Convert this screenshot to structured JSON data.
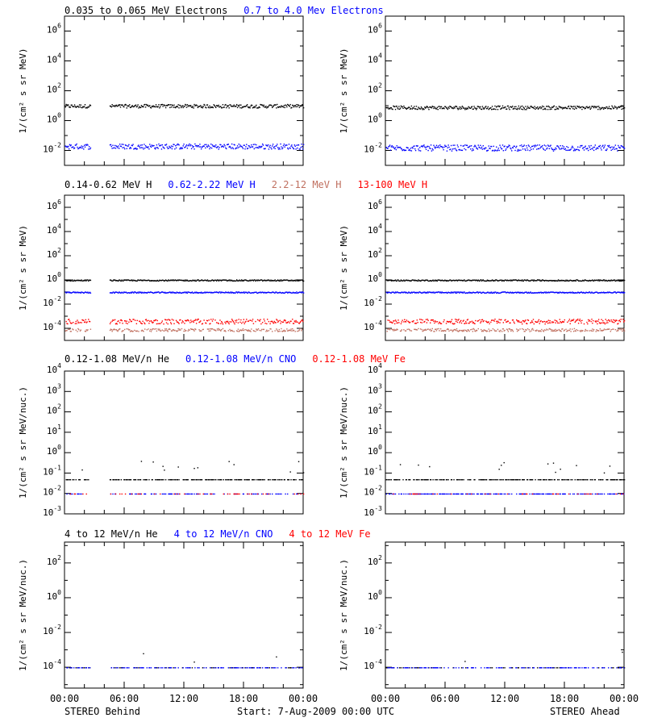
{
  "colors": {
    "black": "#000000",
    "blue": "#0000ff",
    "salmon": "#c07060",
    "red": "#ff0000"
  },
  "footer": {
    "left": "STEREO Behind",
    "center": "Start:  7-Aug-2009 00:00 UTC",
    "right": "STEREO Ahead"
  },
  "x_ticks": [
    "00:00",
    "06:00",
    "12:00",
    "18:00",
    "00:00"
  ],
  "chart_data": [
    {
      "type": "scatter",
      "panel": "behind-electrons",
      "legend": [
        {
          "text": "0.035 to 0.065 MeV Electrons",
          "color": "#000000"
        },
        {
          "text": "0.7 to 4.0 Mev Electrons",
          "color": "#0000ff"
        }
      ],
      "ylabel": "1/(cm² s sr MeV)",
      "yscale": "log",
      "ylim_exp": [
        -3,
        7
      ],
      "ytick_exps": [
        -2,
        0,
        2,
        4,
        6
      ],
      "xlim_hours": [
        0,
        24
      ],
      "series": [
        {
          "color": "#000000",
          "level_exp": 1.0,
          "jitter": 0.12,
          "gaps": [
            [
              2.6,
              4.5
            ]
          ],
          "density": 1
        },
        {
          "color": "#0000ff",
          "level_exp": -1.7,
          "jitter": 0.18,
          "gaps": [
            [
              2.6,
              4.5
            ]
          ],
          "density": 1
        }
      ]
    },
    {
      "type": "scatter",
      "panel": "ahead-electrons",
      "legend": [],
      "ylabel": "1/(cm² s sr MeV)",
      "yscale": "log",
      "ylim_exp": [
        -3,
        7
      ],
      "ytick_exps": [
        -2,
        0,
        2,
        4,
        6
      ],
      "xlim_hours": [
        0,
        24
      ],
      "series": [
        {
          "color": "#000000",
          "level_exp": 0.9,
          "jitter": 0.12,
          "gaps": [],
          "density": 1
        },
        {
          "color": "#0000ff",
          "level_exp": -1.8,
          "jitter": 0.2,
          "gaps": [],
          "density": 1
        }
      ]
    },
    {
      "type": "scatter",
      "panel": "behind-protons",
      "legend": [
        {
          "text": "0.14-0.62 MeV H",
          "color": "#000000"
        },
        {
          "text": "0.62-2.22 MeV H",
          "color": "#0000ff"
        },
        {
          "text": "2.2-12 MeV H",
          "color": "#c07060"
        },
        {
          "text": "13-100 MeV H",
          "color": "#ff0000"
        }
      ],
      "ylabel": "1/(cm² s sr MeV)",
      "yscale": "log",
      "ylim_exp": [
        -5,
        7
      ],
      "ytick_exps": [
        -4,
        -2,
        0,
        2,
        4,
        6
      ],
      "xlim_hours": [
        0,
        24
      ],
      "series": [
        {
          "color": "#000000",
          "level_exp": 0.0,
          "jitter": 0.05,
          "gaps": [
            [
              2.6,
              4.5
            ]
          ],
          "density": 1
        },
        {
          "color": "#0000ff",
          "level_exp": -1.0,
          "jitter": 0.05,
          "gaps": [
            [
              2.6,
              4.5
            ]
          ],
          "density": 1
        },
        {
          "color": "#c07060",
          "level_exp": -4.1,
          "jitter": 0.12,
          "gaps": [
            [
              2.6,
              4.5
            ]
          ],
          "density": 0.7
        },
        {
          "color": "#ff0000",
          "level_exp": -3.4,
          "jitter": 0.2,
          "gaps": [
            [
              2.6,
              4.5
            ]
          ],
          "density": 0.8
        }
      ]
    },
    {
      "type": "scatter",
      "panel": "ahead-protons",
      "legend": [],
      "ylabel": "1/(cm² s sr MeV)",
      "yscale": "log",
      "ylim_exp": [
        -5,
        7
      ],
      "ytick_exps": [
        -4,
        -2,
        0,
        2,
        4,
        6
      ],
      "xlim_hours": [
        0,
        24
      ],
      "series": [
        {
          "color": "#000000",
          "level_exp": 0.0,
          "jitter": 0.05,
          "gaps": [],
          "density": 1
        },
        {
          "color": "#0000ff",
          "level_exp": -1.0,
          "jitter": 0.05,
          "gaps": [],
          "density": 1
        },
        {
          "color": "#c07060",
          "level_exp": -4.1,
          "jitter": 0.12,
          "gaps": [],
          "density": 0.7
        },
        {
          "color": "#ff0000",
          "level_exp": -3.4,
          "jitter": 0.2,
          "gaps": [],
          "density": 0.8
        }
      ]
    },
    {
      "type": "scatter",
      "panel": "behind-heavy-low",
      "legend": [
        {
          "text": "0.12-1.08 MeV/n He",
          "color": "#000000"
        },
        {
          "text": "0.12-1.08 MeV/n CNO",
          "color": "#0000ff"
        },
        {
          "text": "0.12-1.08 MeV Fe",
          "color": "#ff0000"
        }
      ],
      "ylabel": "1/(cm² s sr MeV/nuc.)",
      "yscale": "log",
      "ylim_exp": [
        -3,
        4
      ],
      "ytick_exps": [
        -3,
        -2,
        -1,
        0,
        1,
        2,
        3,
        4
      ],
      "xlim_hours": [
        0,
        24
      ],
      "series": [
        {
          "color": "#000000",
          "level_exp": -1.3,
          "jitter": 0.0,
          "gaps": [
            [
              2.6,
              4.5
            ]
          ],
          "density": 0.6,
          "sparks": true
        },
        {
          "color": "#0000ff",
          "level_exp": -2.0,
          "jitter": 0.0,
          "gaps": [
            [
              2.6,
              4.5
            ]
          ],
          "density": 0.3
        },
        {
          "color": "#ff0000",
          "level_exp": -2.0,
          "jitter": 0.0,
          "gaps": [
            [
              2.6,
              4.5
            ]
          ],
          "density": 0.12
        }
      ]
    },
    {
      "type": "scatter",
      "panel": "ahead-heavy-low",
      "legend": [],
      "ylabel": "1/(cm² s sr MeV/nuc.)",
      "yscale": "log",
      "ylim_exp": [
        -3,
        4
      ],
      "ytick_exps": [
        -3,
        -2,
        -1,
        0,
        1,
        2,
        3,
        4
      ],
      "xlim_hours": [
        0,
        24
      ],
      "series": [
        {
          "color": "#000000",
          "level_exp": -1.3,
          "jitter": 0.0,
          "gaps": [],
          "density": 0.6,
          "sparks": true
        },
        {
          "color": "#0000ff",
          "level_exp": -2.0,
          "jitter": 0.0,
          "gaps": [],
          "density": 0.5
        },
        {
          "color": "#ff0000",
          "level_exp": -2.0,
          "jitter": 0.0,
          "gaps": [],
          "density": 0.12
        }
      ]
    },
    {
      "type": "scatter",
      "panel": "behind-heavy-high",
      "legend": [
        {
          "text": "4 to 12 MeV/n He",
          "color": "#000000"
        },
        {
          "text": "4 to 12 MeV/n CNO",
          "color": "#0000ff"
        },
        {
          "text": "4 to 12 MeV Fe",
          "color": "#ff0000"
        }
      ],
      "ylabel": "1/(cm² s sr MeV/nuc.)",
      "yscale": "log",
      "ylim_exp": [
        -5.2,
        3.2
      ],
      "ytick_exps": [
        -4,
        -2,
        0,
        2
      ],
      "xlim_hours": [
        0,
        24
      ],
      "series": [
        {
          "color": "#000000",
          "level_exp": -4.0,
          "jitter": 0.0,
          "gaps": [
            [
              2.6,
              4.5
            ]
          ],
          "density": 0.2,
          "sparks": true
        },
        {
          "color": "#0000ff",
          "level_exp": -4.0,
          "jitter": 0.0,
          "gaps": [
            [
              2.6,
              4.5
            ]
          ],
          "density": 0.35
        }
      ]
    },
    {
      "type": "scatter",
      "panel": "ahead-heavy-high",
      "legend": [],
      "ylabel": "1/(cm² s sr MeV/nuc.)",
      "yscale": "log",
      "ylim_exp": [
        -5.2,
        3.2
      ],
      "ytick_exps": [
        -4,
        -2,
        0,
        2
      ],
      "xlim_hours": [
        0,
        24
      ],
      "series": [
        {
          "color": "#000000",
          "level_exp": -4.0,
          "jitter": 0.0,
          "gaps": [],
          "density": 0.2,
          "sparks": true
        },
        {
          "color": "#0000ff",
          "level_exp": -4.0,
          "jitter": 0.0,
          "gaps": [],
          "density": 0.35
        }
      ]
    }
  ]
}
